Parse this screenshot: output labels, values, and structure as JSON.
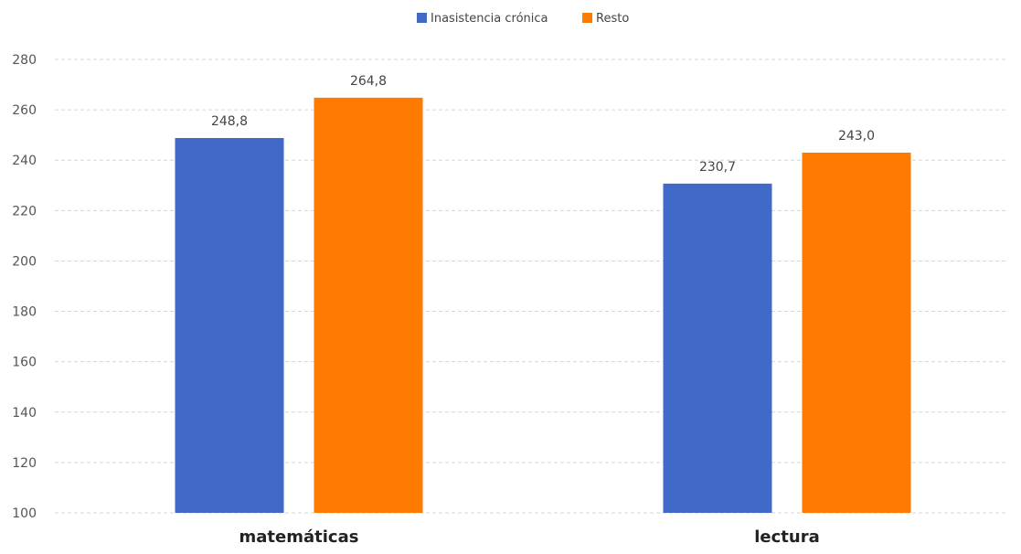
{
  "chart_data": {
    "type": "bar",
    "categories": [
      "matemáticas",
      "lectura"
    ],
    "series": [
      {
        "name": "Inasistencia crónica",
        "values": [
          248.8,
          230.7
        ],
        "labels": [
          "248,8",
          "230,7"
        ],
        "color": "#4169C8"
      },
      {
        "name": "Resto",
        "values": [
          264.8,
          243.0
        ],
        "labels": [
          "264,8",
          "243,0"
        ],
        "color": "#FF7A00"
      }
    ],
    "ylim": [
      100,
      280
    ],
    "yticks": [
      100,
      120,
      140,
      160,
      180,
      200,
      220,
      240,
      260,
      280
    ],
    "grid": true,
    "legend": "top-center",
    "title": "",
    "xlabel": "",
    "ylabel": ""
  }
}
